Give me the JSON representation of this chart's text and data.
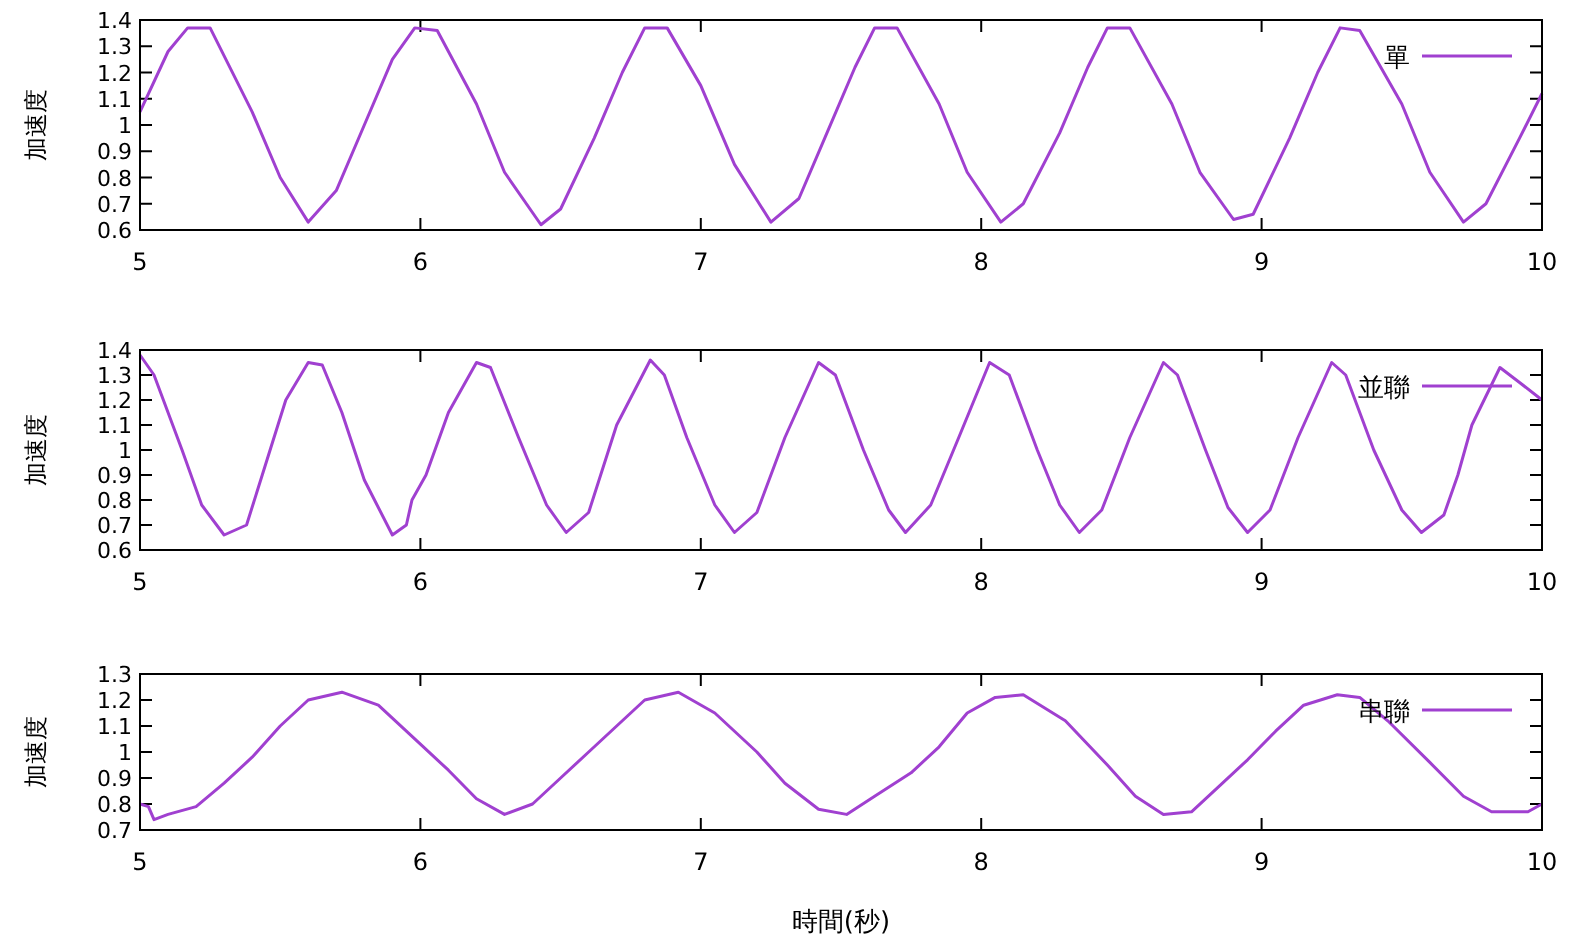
{
  "chart_data": [
    {
      "type": "line",
      "ylabel": "加速度",
      "xlim": [
        5,
        10
      ],
      "xticks": [
        5,
        6,
        7,
        8,
        9,
        10
      ],
      "ylim": [
        0.6,
        1.4
      ],
      "yticks": [
        0.6,
        0.7,
        0.8,
        0.9,
        1,
        1.1,
        1.2,
        1.3,
        1.4
      ],
      "legend": "top right",
      "grid": false,
      "series": [
        {
          "name": "單",
          "color": "#a040d0",
          "x": [
            5.0,
            5.1,
            5.17,
            5.25,
            5.4,
            5.5,
            5.6,
            5.7,
            5.8,
            5.9,
            5.98,
            6.06,
            6.2,
            6.3,
            6.43,
            6.5,
            6.62,
            6.72,
            6.8,
            6.88,
            7.0,
            7.12,
            7.25,
            7.35,
            7.45,
            7.55,
            7.62,
            7.7,
            7.85,
            7.95,
            8.07,
            8.15,
            8.28,
            8.38,
            8.45,
            8.53,
            8.68,
            8.78,
            8.9,
            8.97,
            9.1,
            9.2,
            9.28,
            9.35,
            9.5,
            9.6,
            9.72,
            9.8,
            9.92,
            10.0
          ],
          "values": [
            1.05,
            1.28,
            1.37,
            1.37,
            1.05,
            0.8,
            0.63,
            0.75,
            1.0,
            1.25,
            1.37,
            1.36,
            1.08,
            0.82,
            0.62,
            0.68,
            0.95,
            1.2,
            1.37,
            1.37,
            1.15,
            0.85,
            0.63,
            0.72,
            0.97,
            1.22,
            1.37,
            1.37,
            1.08,
            0.82,
            0.63,
            0.7,
            0.97,
            1.22,
            1.37,
            1.37,
            1.08,
            0.82,
            0.64,
            0.66,
            0.95,
            1.2,
            1.37,
            1.36,
            1.08,
            0.82,
            0.63,
            0.7,
            0.95,
            1.12
          ]
        }
      ]
    },
    {
      "type": "line",
      "ylabel": "加速度",
      "xlim": [
        5,
        10
      ],
      "xticks": [
        5,
        6,
        7,
        8,
        9,
        10
      ],
      "ylim": [
        0.6,
        1.4
      ],
      "yticks": [
        0.6,
        0.7,
        0.8,
        0.9,
        1,
        1.1,
        1.2,
        1.3,
        1.4
      ],
      "legend": "top right",
      "grid": false,
      "series": [
        {
          "name": "並聯",
          "color": "#a040d0",
          "x": [
            5.0,
            5.05,
            5.15,
            5.22,
            5.3,
            5.38,
            5.45,
            5.52,
            5.6,
            5.65,
            5.72,
            5.8,
            5.9,
            5.95,
            5.97,
            6.02,
            6.1,
            6.2,
            6.25,
            6.35,
            6.45,
            6.52,
            6.6,
            6.7,
            6.82,
            6.87,
            6.95,
            7.05,
            7.12,
            7.2,
            7.3,
            7.42,
            7.48,
            7.58,
            7.67,
            7.73,
            7.82,
            7.92,
            8.03,
            8.1,
            8.2,
            8.28,
            8.35,
            8.43,
            8.53,
            8.65,
            8.7,
            8.8,
            8.88,
            8.95,
            9.03,
            9.13,
            9.25,
            9.3,
            9.4,
            9.5,
            9.57,
            9.65,
            9.7,
            9.75,
            9.85,
            9.92,
            10.0
          ],
          "values": [
            1.38,
            1.3,
            1.0,
            0.78,
            0.66,
            0.7,
            0.95,
            1.2,
            1.35,
            1.34,
            1.15,
            0.88,
            0.66,
            0.7,
            0.8,
            0.9,
            1.15,
            1.35,
            1.33,
            1.05,
            0.78,
            0.67,
            0.75,
            1.1,
            1.36,
            1.3,
            1.05,
            0.78,
            0.67,
            0.75,
            1.05,
            1.35,
            1.3,
            1.0,
            0.76,
            0.67,
            0.78,
            1.05,
            1.35,
            1.3,
            1.0,
            0.78,
            0.67,
            0.76,
            1.05,
            1.35,
            1.3,
            1.0,
            0.77,
            0.67,
            0.76,
            1.05,
            1.35,
            1.3,
            1.0,
            0.76,
            0.67,
            0.74,
            0.9,
            1.1,
            1.33,
            1.27,
            1.2
          ]
        }
      ]
    },
    {
      "type": "line",
      "ylabel": "加速度",
      "xlabel": "時間(秒)",
      "xlim": [
        5,
        10
      ],
      "xticks": [
        5,
        6,
        7,
        8,
        9,
        10
      ],
      "ylim": [
        0.7,
        1.3
      ],
      "yticks": [
        0.7,
        0.8,
        0.9,
        1,
        1.1,
        1.2,
        1.3
      ],
      "legend": "top right",
      "grid": false,
      "series": [
        {
          "name": "串聯",
          "color": "#a040d0",
          "x": [
            5.0,
            5.03,
            5.05,
            5.1,
            5.2,
            5.3,
            5.4,
            5.5,
            5.6,
            5.72,
            5.85,
            6.0,
            6.1,
            6.2,
            6.3,
            6.4,
            6.5,
            6.6,
            6.7,
            6.8,
            6.92,
            7.05,
            7.2,
            7.3,
            7.42,
            7.52,
            7.62,
            7.75,
            7.85,
            7.95,
            8.05,
            8.15,
            8.3,
            8.45,
            8.55,
            8.65,
            8.75,
            8.85,
            8.95,
            9.05,
            9.15,
            9.27,
            9.35,
            9.45,
            9.6,
            9.72,
            9.82,
            9.95,
            10.0
          ],
          "values": [
            0.8,
            0.79,
            0.74,
            0.76,
            0.79,
            0.88,
            0.98,
            1.1,
            1.2,
            1.23,
            1.18,
            1.03,
            0.93,
            0.82,
            0.76,
            0.8,
            0.9,
            1.0,
            1.1,
            1.2,
            1.23,
            1.15,
            1.0,
            0.88,
            0.78,
            0.76,
            0.83,
            0.92,
            1.02,
            1.15,
            1.21,
            1.22,
            1.12,
            0.95,
            0.83,
            0.76,
            0.77,
            0.87,
            0.97,
            1.08,
            1.18,
            1.22,
            1.21,
            1.12,
            0.96,
            0.83,
            0.77,
            0.77,
            0.8
          ]
        }
      ]
    }
  ]
}
